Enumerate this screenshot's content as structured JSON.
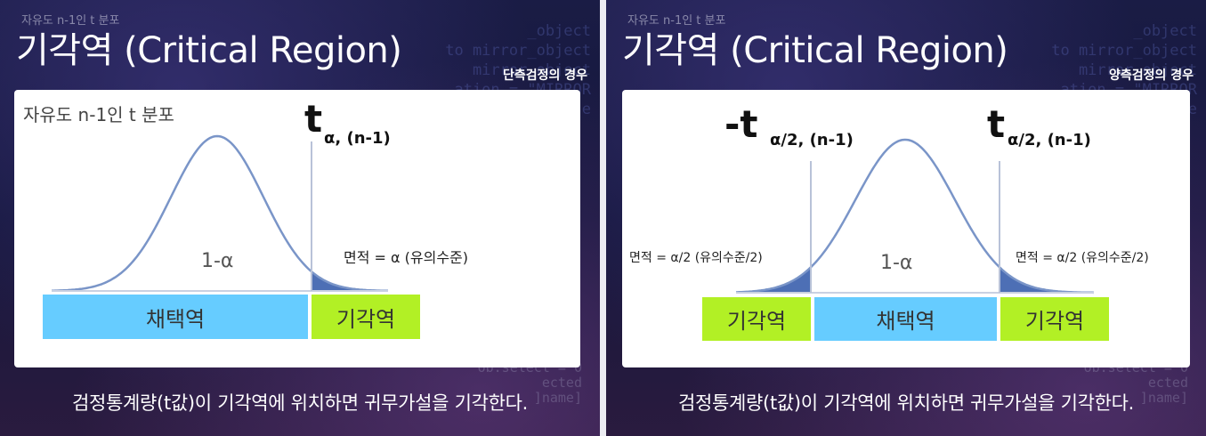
{
  "left": {
    "small_caption": "자유도 n-1인 t 분포",
    "title": "기각역 (Critical Region)",
    "subtitle": "단측검정의 경우",
    "dist_label": "자유도 n-1인 t 분포",
    "t_symbol": "t",
    "t_subscript": "α, (n-1)",
    "area_label": "면적 = α (유의수준)",
    "center_label": "1-α",
    "accept_label": "채택역",
    "reject_label": "기각역",
    "footer": "검정통계량(t값)이 기각역에 위치하면 귀무가설을 기각한다."
  },
  "right": {
    "small_caption": "자유도 n-1인 t 분포",
    "title": "기각역 (Critical Region)",
    "subtitle": "양측검정의 경우",
    "t_left_symbol": "-t",
    "t_left_subscript": "α/2, (n-1)",
    "t_right_symbol": "t",
    "t_right_subscript": "α/2, (n-1)",
    "area_left_label": "면적 = α/2 (유의수준/2)",
    "area_right_label": "면적 = α/2 (유의수준/2)",
    "center_label": "1-α",
    "reject_left_label": "기각역",
    "accept_label": "채택역",
    "reject_right_label": "기각역",
    "footer": "검정통계량(t값)이 기각역에 위치하면 귀무가설을 기각한다."
  },
  "colors": {
    "curve": "#7a95c8",
    "tail_fill": "#4d6fb5",
    "accept_box": "#66ccff",
    "reject_box": "#b2f025",
    "card": "#ffffff"
  }
}
